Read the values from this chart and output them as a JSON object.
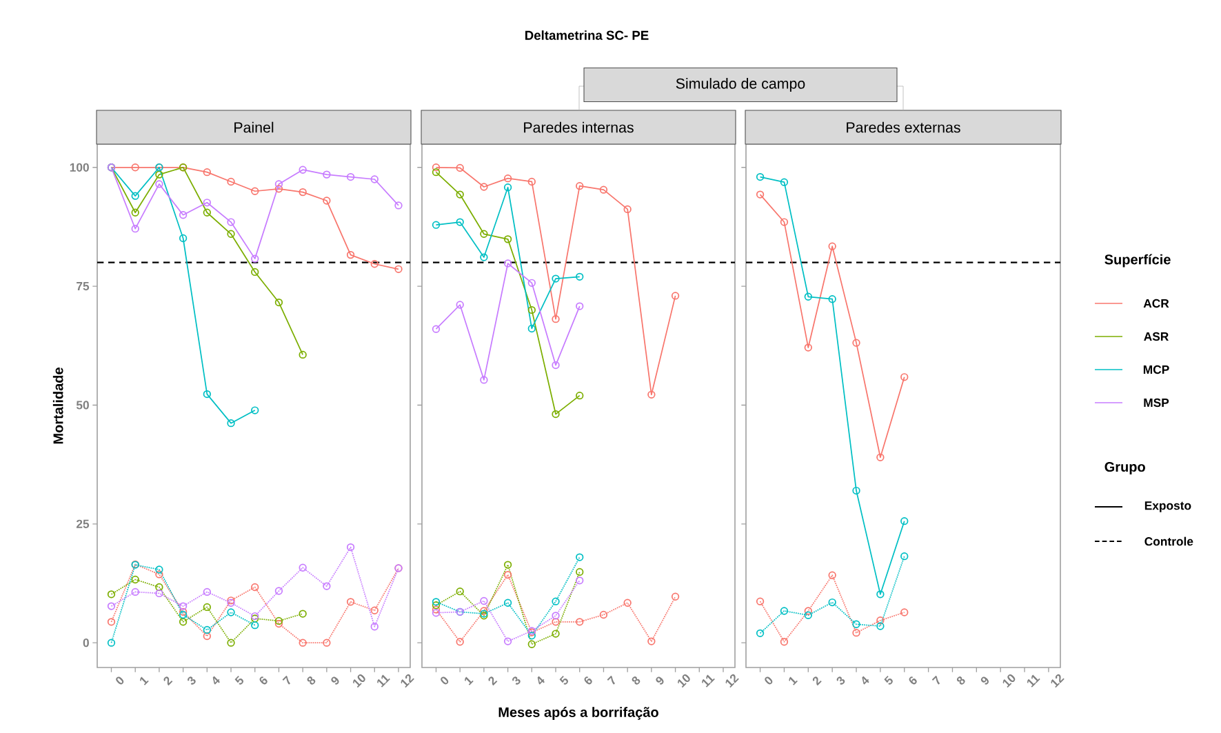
{
  "chart_data": [
    {
      "type": "line",
      "title": "Painel",
      "ylabel": "Mortalidade",
      "legend_title": "Superfície",
      "legend": "right",
      "marker": "circle",
      "annotations": [
        "Deltametrina SC- PE",
        "Grupo",
        "Exposto",
        "Controle"
      ],
      "x": [
        0,
        1,
        2,
        3,
        4,
        5,
        6,
        7,
        8,
        9,
        10,
        11,
        12
      ],
      "xlim": [
        -0.59,
        12.49
      ],
      "ylim": [
        -5.2,
        104.9
      ],
      "xticks": [
        0,
        1,
        2,
        3,
        4,
        5,
        6,
        7,
        8,
        9,
        10,
        11,
        12
      ],
      "yticks": [
        0,
        25,
        50,
        75,
        100
      ],
      "ref_lines": [
        {
          "axis": "y",
          "value": 80,
          "line_style": "dashed",
          "color": "#000000"
        }
      ],
      "series": [
        {
          "name": "ACR",
          "color": "#F8766D",
          "line_style": "solid",
          "values": [
            100,
            100,
            100,
            100,
            99,
            97,
            95,
            95.5,
            94.8,
            93,
            81.6,
            79.7,
            78.6
          ]
        },
        {
          "name": "ASR",
          "color": "#7CAE00",
          "line_style": "solid",
          "values": [
            100,
            90.5,
            98.5,
            100,
            90.5,
            86,
            78,
            71.6,
            60.6,
            null,
            null,
            null,
            null
          ]
        },
        {
          "name": "MCP",
          "color": "#00BFC4",
          "line_style": "solid",
          "values": [
            100,
            94,
            100,
            85.1,
            52.3,
            46.2,
            48.9,
            null,
            null,
            null,
            null,
            null,
            null
          ]
        },
        {
          "name": "MSP",
          "color": "#C77CFF",
          "line_style": "solid",
          "values": [
            100,
            87.1,
            96.5,
            90,
            92.6,
            88.5,
            80.8,
            96.5,
            99.5,
            98.5,
            98,
            97.5,
            92
          ]
        },
        {
          "color": "#F8766D",
          "line_style": "dotted",
          "values": [
            4.4,
            16.5,
            14.4,
            6.5,
            1.4,
            8.9,
            11.7,
            4,
            0,
            0,
            8.6,
            6.8,
            15.7
          ]
        },
        {
          "color": "#7CAE00",
          "line_style": "dotted",
          "values": [
            10.2,
            13.3,
            11.7,
            4.4,
            7.5,
            0,
            5.1,
            4.6,
            6.1,
            null,
            null,
            null,
            null
          ]
        },
        {
          "color": "#00BFC4",
          "line_style": "dotted",
          "values": [
            0,
            16.4,
            15.4,
            5.9,
            2.7,
            6.4,
            3.7,
            null,
            null,
            null,
            null,
            null,
            null
          ]
        },
        {
          "color": "#C77CFF",
          "line_style": "dotted",
          "values": [
            7.7,
            10.7,
            10.4,
            7.7,
            10.7,
            8.4,
            5.6,
            10.9,
            15.8,
            11.9,
            20.1,
            3.4,
            15.7
          ]
        }
      ]
    },
    {
      "type": "line",
      "title": "Paredes internas",
      "xlabel": "Meses após a borrifação",
      "marker": "circle",
      "tick_labels": "x",
      "annotations": [
        "Simulado de campo"
      ],
      "x": [
        0,
        1,
        2,
        3,
        4,
        5,
        6,
        7,
        8,
        9,
        10
      ],
      "xlim": [
        -0.59,
        12.49
      ],
      "ylim": [
        -5.2,
        104.9
      ],
      "xticks": [
        0,
        1,
        2,
        3,
        4,
        5,
        6,
        7,
        8,
        9,
        10,
        11,
        12
      ],
      "yticks": [
        0,
        25,
        50,
        75,
        100
      ],
      "ref_lines": [
        {
          "axis": "y",
          "value": 80,
          "line_style": "dashed",
          "color": "#000000"
        }
      ],
      "series": [
        {
          "color": "#F8766D",
          "line_style": "solid",
          "values": [
            100,
            99.9,
            95.9,
            97.7,
            97,
            68.1,
            96.1,
            95.3,
            91.2,
            52.2,
            73
          ]
        },
        {
          "color": "#7CAE00",
          "line_style": "solid",
          "values": [
            99,
            94.3,
            86,
            84.9,
            70,
            48.1,
            52,
            null,
            null,
            null,
            null
          ]
        },
        {
          "color": "#00BFC4",
          "line_style": "solid",
          "values": [
            87.9,
            88.5,
            81.1,
            95.8,
            66.1,
            76.6,
            77,
            null,
            null,
            null,
            null
          ]
        },
        {
          "color": "#C77CFF",
          "line_style": "solid",
          "values": [
            66,
            71.1,
            55.3,
            79.8,
            75.7,
            58.4,
            70.8,
            null,
            null,
            null,
            null
          ]
        },
        {
          "color": "#F8766D",
          "line_style": "dotted",
          "values": [
            7,
            0.2,
            6.7,
            14.3,
            2.2,
            4.4,
            4.4,
            5.9,
            8.4,
            0.3,
            9.7
          ]
        },
        {
          "color": "#7CAE00",
          "line_style": "dotted",
          "values": [
            7.9,
            10.8,
            5.7,
            16.4,
            -0.3,
            1.9,
            14.9,
            null,
            null,
            null,
            null
          ]
        },
        {
          "color": "#00BFC4",
          "line_style": "dotted",
          "values": [
            8.6,
            6.5,
            6.1,
            8.4,
            1.5,
            8.7,
            18,
            null,
            null,
            null,
            null
          ]
        },
        {
          "color": "#C77CFF",
          "line_style": "dotted",
          "values": [
            6.3,
            6.5,
            8.8,
            0.3,
            2.5,
            5.7,
            13.1,
            null,
            null,
            null,
            null
          ]
        }
      ]
    },
    {
      "type": "line",
      "title": "Paredes externas",
      "marker": "circle",
      "tick_labels": "x",
      "x": [
        0,
        1,
        2,
        3,
        4,
        5,
        6
      ],
      "xlim": [
        -0.59,
        12.49
      ],
      "ylim": [
        -5.2,
        104.9
      ],
      "xticks": [
        0,
        1,
        2,
        3,
        4,
        5,
        6,
        7,
        8,
        9,
        10,
        11,
        12
      ],
      "yticks": [
        0,
        25,
        50,
        75,
        100
      ],
      "ref_lines": [
        {
          "axis": "y",
          "value": 80,
          "line_style": "dashed",
          "color": "#000000"
        }
      ],
      "series": [
        {
          "color": "#F8766D",
          "line_style": "solid",
          "values": [
            94.3,
            88.5,
            62.1,
            83.4,
            63.1,
            39,
            55.9
          ]
        },
        {
          "color": "#00BFC4",
          "line_style": "solid",
          "values": [
            98,
            96.9,
            72.8,
            72.3,
            32,
            10.2,
            25.6
          ]
        },
        {
          "color": "#F8766D",
          "line_style": "dotted",
          "values": [
            8.7,
            0.2,
            6.7,
            14.2,
            2.1,
            4.7,
            6.4
          ]
        },
        {
          "color": "#00BFC4",
          "line_style": "dotted",
          "values": [
            2,
            6.7,
            5.8,
            8.5,
            3.9,
            3.5,
            18.2
          ]
        }
      ]
    }
  ]
}
